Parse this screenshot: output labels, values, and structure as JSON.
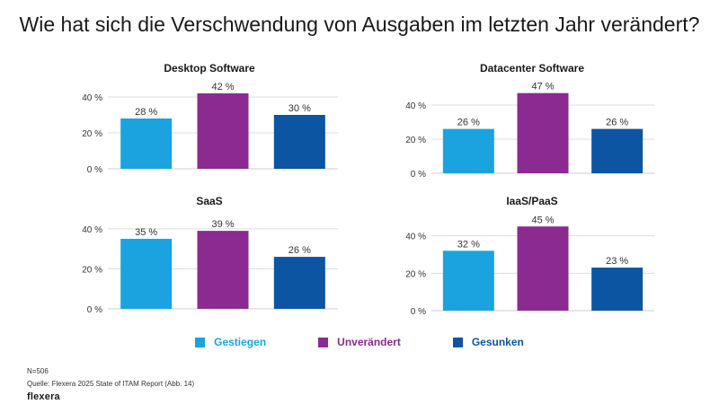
{
  "title": "Wie hat sich die Verschwendung von Ausgaben im letzten Jahr verändert?",
  "colors": {
    "gestiegen": "#1ba3e0",
    "unveraendert": "#8b2a91",
    "gesunken": "#0b55a3"
  },
  "legend": [
    {
      "label": "Gestiegen",
      "color": "#1ba3e0"
    },
    {
      "label": "Unverändert",
      "color": "#8b2a91"
    },
    {
      "label": "Gesunken",
      "color": "#0b55a3"
    }
  ],
  "chart_data": [
    {
      "type": "bar",
      "title": "Desktop Software",
      "categories": [
        "Gestiegen",
        "Unverändert",
        "Gesunken"
      ],
      "values": [
        28,
        42,
        30
      ],
      "value_labels": [
        "28 %",
        "42 %",
        "30 %"
      ],
      "ylim": [
        0,
        45
      ],
      "yticks": [
        0,
        20,
        40
      ],
      "ytick_labels": [
        "0 %",
        "20 %",
        "40 %"
      ],
      "grid": true
    },
    {
      "type": "bar",
      "title": "Datacenter Software",
      "categories": [
        "Gestiegen",
        "Unverändert",
        "Gesunken"
      ],
      "values": [
        26,
        47,
        26
      ],
      "value_labels": [
        "26 %",
        "47 %",
        "26 %"
      ],
      "ylim": [
        0,
        50
      ],
      "yticks": [
        0,
        20,
        40
      ],
      "ytick_labels": [
        "0 %",
        "20 %",
        "40 %"
      ],
      "grid": true
    },
    {
      "type": "bar",
      "title": "SaaS",
      "categories": [
        "Gestiegen",
        "Unverändert",
        "Gesunken"
      ],
      "values": [
        35,
        39,
        26
      ],
      "value_labels": [
        "35 %",
        "39 %",
        "26 %"
      ],
      "ylim": [
        0,
        44
      ],
      "yticks": [
        0,
        20,
        40
      ],
      "ytick_labels": [
        "0 %",
        "20 %",
        "40 %"
      ],
      "grid": true
    },
    {
      "type": "bar",
      "title": "IaaS/PaaS",
      "categories": [
        "Gestiegen",
        "Unverändert",
        "Gesunken"
      ],
      "values": [
        32,
        45,
        23
      ],
      "value_labels": [
        "32 %",
        "45 %",
        "23 %"
      ],
      "ylim": [
        0,
        48
      ],
      "yticks": [
        0,
        20,
        40
      ],
      "ytick_labels": [
        "0 %",
        "20 %",
        "40 %"
      ],
      "grid": true
    }
  ],
  "footer": {
    "n": "N=506",
    "source": "Quelle: Flexera 2025 State of ITAM Report (Abb. 14)",
    "brand": "flexera"
  }
}
